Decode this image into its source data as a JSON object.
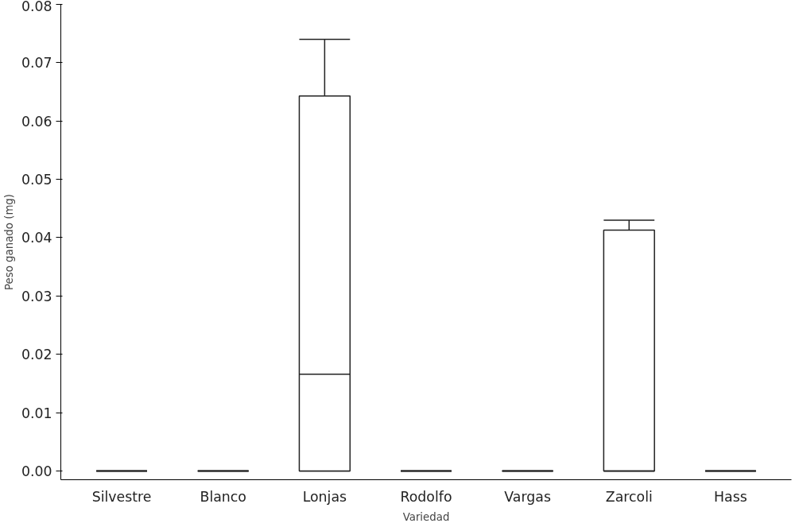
{
  "chart_data": {
    "type": "box",
    "xlabel": "Variedad",
    "ylabel": "Peso ganado (mg)",
    "categories": [
      "Silvestre",
      "Blanco",
      "Lonjas",
      "Rodolfo",
      "Vargas",
      "Zarcoli",
      "Hass"
    ],
    "boxes": [
      {
        "low": 0,
        "q1": 0,
        "median": 0,
        "q3": 0,
        "high": 0
      },
      {
        "low": 0,
        "q1": 0,
        "median": 0,
        "q3": 0,
        "high": 0
      },
      {
        "low": 0,
        "q1": 0,
        "median": 0.0166,
        "q3": 0.0643,
        "high": 0.074
      },
      {
        "low": 0,
        "q1": 0,
        "median": 0,
        "q3": 0,
        "high": 0
      },
      {
        "low": 0,
        "q1": 0,
        "median": 0,
        "q3": 0,
        "high": 0
      },
      {
        "low": 0,
        "q1": 0,
        "median": 0,
        "q3": 0.0413,
        "high": 0.043
      },
      {
        "low": 0,
        "q1": 0,
        "median": 0,
        "q3": 0,
        "high": 0
      }
    ],
    "color": "#222222",
    "ylim": [
      -0.0015,
      0.08
    ],
    "yticks": [
      {
        "value": 0,
        "label": "0.00"
      },
      0.01,
      0.02,
      0.03,
      0.04,
      0.05,
      0.06,
      0.07,
      0.08
    ],
    "grid": false
  }
}
